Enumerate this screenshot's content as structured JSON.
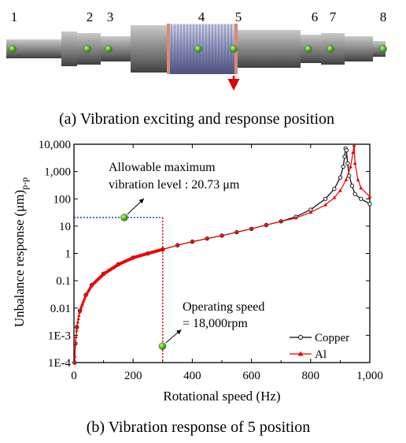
{
  "panel_a": {
    "caption": "(a) Vibration exciting and response position",
    "position_labels": [
      "1",
      "2",
      "3",
      "4",
      "5",
      "6",
      "7",
      "8"
    ]
  },
  "panel_b": {
    "caption": "(b) Vibration response of 5 position"
  },
  "colors": {
    "copper": "#000000",
    "al": "#ee0000",
    "guide_line": "#1a3ccc",
    "guide_red": "#dd0000",
    "marker": "#3fa43f"
  },
  "chart_data": {
    "type": "line",
    "title": "",
    "xlabel": "Rotational speed (Hz)",
    "ylabel": "Unbalance response (μm)",
    "ylabel_subscript": "p-p",
    "x_scale": "linear",
    "y_scale": "log",
    "xlim": [
      0,
      1000
    ],
    "ylim": [
      0.0001,
      10000
    ],
    "x_ticks": [
      "0",
      "200",
      "400",
      "600",
      "800",
      "1,000"
    ],
    "y_ticks": [
      "1E-4",
      "1E-3",
      "0.01",
      "0.1",
      "1",
      "10",
      "100",
      "1,000",
      "10,000"
    ],
    "legend_position": "bottom-right",
    "series": [
      {
        "name": "Copper",
        "marker": "open-circle",
        "x": [
          2,
          5,
          10,
          20,
          40,
          60,
          100,
          150,
          200,
          250,
          300,
          350,
          400,
          450,
          500,
          550,
          600,
          650,
          700,
          750,
          800,
          850,
          880,
          900,
          910,
          915,
          918,
          921,
          925,
          930,
          940,
          950,
          970,
          1000
        ],
        "values": [
          0.0001,
          0.0005,
          0.002,
          0.008,
          0.03,
          0.07,
          0.18,
          0.4,
          0.7,
          1.0,
          1.4,
          2.0,
          2.7,
          3.5,
          4.5,
          6.0,
          8.0,
          11,
          15,
          22,
          40,
          100,
          230,
          600,
          1500,
          3500,
          7000,
          6000,
          2000,
          700,
          300,
          150,
          100,
          65
        ]
      },
      {
        "name": "Al",
        "marker": "filled-triangle",
        "x": [
          2,
          5,
          10,
          20,
          40,
          60,
          100,
          150,
          200,
          250,
          300,
          350,
          400,
          450,
          500,
          550,
          600,
          650,
          700,
          750,
          800,
          850,
          880,
          900,
          920,
          935,
          943,
          947,
          950,
          960,
          970,
          1000
        ],
        "values": [
          0.0001,
          0.0005,
          0.002,
          0.008,
          0.03,
          0.07,
          0.18,
          0.4,
          0.7,
          1.0,
          1.4,
          2.0,
          2.7,
          3.5,
          4.5,
          6.0,
          8.0,
          11,
          15,
          20,
          32,
          60,
          110,
          200,
          500,
          1500,
          5000,
          9000,
          2000,
          500,
          250,
          120
        ]
      }
    ],
    "annotations": [
      {
        "text": [
          "Allowable maximum",
          "vibration level : 20.73 μm"
        ],
        "x": 170,
        "y": 20.73
      },
      {
        "text": [
          "Operating speed",
          "= 18,000rpm"
        ],
        "x": 300,
        "y": 0.0004
      }
    ]
  }
}
